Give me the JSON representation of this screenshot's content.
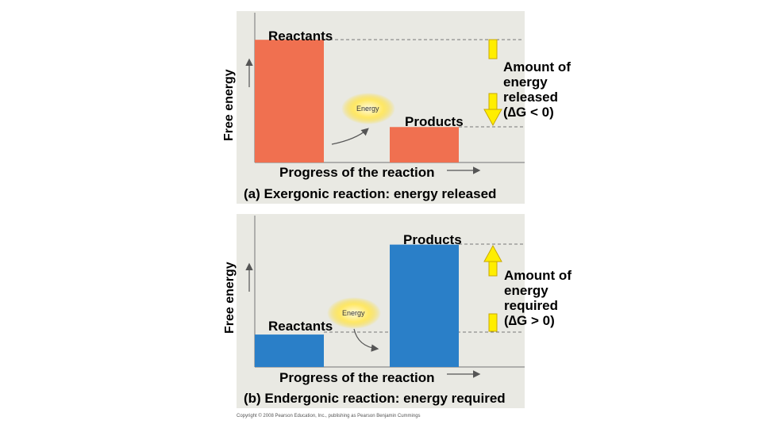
{
  "panel_a": {
    "y_axis_label": "Free energy",
    "reactants_label": "Reactants",
    "products_label": "Products",
    "energy_label": "Energy",
    "x_axis_label": "Progress of the reaction",
    "caption": "(a) Exergonic reaction: energy released",
    "amount_lines": [
      "Amount of",
      "energy",
      "released",
      "(∆G < 0)"
    ],
    "reactants_level": 0.9,
    "products_level": 0.26,
    "bar_color": "#f07050",
    "arrow_direction": "down"
  },
  "panel_b": {
    "y_axis_label": "Free energy",
    "reactants_label": "Reactants",
    "products_label": "Products",
    "energy_label": "Energy",
    "x_axis_label": "Progress of the reaction",
    "caption": "(b) Endergonic reaction: energy required",
    "amount_lines": [
      "Amount of",
      "energy",
      "required",
      "(∆G > 0)"
    ],
    "reactants_level": 0.22,
    "products_level": 0.83,
    "bar_color": "#2a7fc8",
    "arrow_direction": "up"
  },
  "copyright": "Copyright © 2008 Pearson Education, Inc., publishing as Pearson Benjamin Cummings",
  "colors": {
    "panel_bg": "#e9e9e3",
    "arrow_fill": "#ffee00",
    "arrow_stroke": "#c9a800",
    "dash": "#777777"
  }
}
